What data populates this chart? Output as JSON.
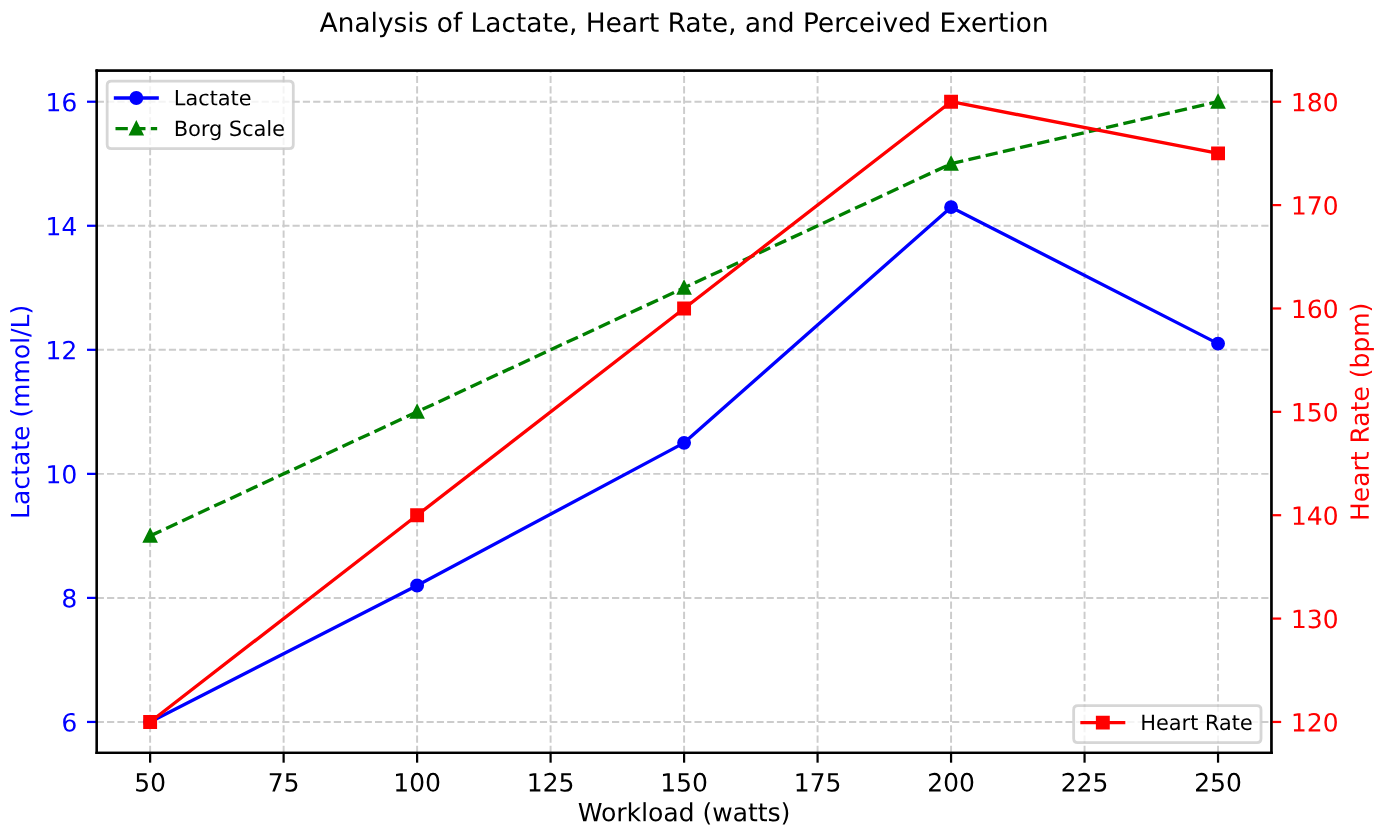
{
  "chart_data": {
    "type": "line",
    "title": "Analysis of Lactate, Heart Rate, and Perceived Exertion",
    "xlabel": "Workload (watts)",
    "ylabel": "Lactate (mmol/L)",
    "y2label": "Heart Rate (bpm)",
    "x": [
      50,
      100,
      150,
      200,
      250
    ],
    "series": [
      {
        "name": "Lactate",
        "color": "#0000ff",
        "values": [
          6,
          8.2,
          10.5,
          14.3,
          12.1
        ],
        "marker": "circle",
        "line_style": "solid"
      },
      {
        "name": "Borg Scale",
        "color": "#008000",
        "values": [
          9,
          11,
          13,
          15,
          16
        ],
        "marker": "triangle",
        "line_style": "dashed"
      },
      {
        "name": "Heart Rate",
        "color": "#ff0000",
        "values": [
          120,
          140,
          160,
          180,
          175
        ],
        "marker": "square",
        "line_style": "solid",
        "axis": "y2"
      }
    ],
    "xlim": [
      40,
      260
    ],
    "xticks": [
      50,
      75,
      100,
      125,
      150,
      175,
      200,
      225,
      250
    ],
    "ylim": [
      5.5,
      16.5
    ],
    "yticks": [
      6,
      8,
      10,
      12,
      14,
      16
    ],
    "y2lim": [
      117,
      183
    ],
    "y2ticks": [
      120,
      130,
      140,
      150,
      160,
      170,
      180
    ],
    "grid": true,
    "legend": "top left"
  }
}
